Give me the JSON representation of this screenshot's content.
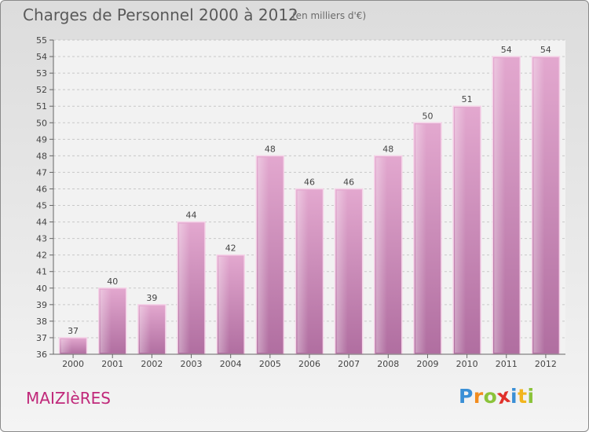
{
  "title": "Charges de Personnel 2000 à 2012",
  "subtitle": "(en milliers d'€)",
  "commune": "MAIZIèRES",
  "logo": {
    "letters": [
      {
        "ch": "P",
        "color": "#3a8fd6"
      },
      {
        "ch": "r",
        "color": "#f28c1e"
      },
      {
        "ch": "o",
        "color": "#8bc33a"
      },
      {
        "ch": "x",
        "color": "#e0302a"
      },
      {
        "ch": "i",
        "color": "#3a8fd6"
      },
      {
        "ch": "t",
        "color": "#f2b51e"
      },
      {
        "ch": "i",
        "color": "#8bc33a"
      }
    ]
  },
  "chart_data": {
    "type": "bar",
    "title": "Charges de Personnel 2000 à 2012",
    "subtitle": "(en milliers d'€)",
    "categories": [
      "2000",
      "2001",
      "2002",
      "2003",
      "2004",
      "2005",
      "2006",
      "2007",
      "2008",
      "2009",
      "2010",
      "2011",
      "2012"
    ],
    "values": [
      37,
      40,
      39,
      44,
      42,
      48,
      46,
      46,
      48,
      50,
      51,
      54,
      54
    ],
    "ylim": [
      36,
      55
    ],
    "yticks": [
      36,
      37,
      38,
      39,
      40,
      41,
      42,
      43,
      44,
      45,
      46,
      47,
      48,
      49,
      50,
      51,
      52,
      53,
      54,
      55
    ],
    "xlabel": "",
    "ylabel": "",
    "grid": true,
    "bar_color": "#d48ab8",
    "data_labels": true
  }
}
